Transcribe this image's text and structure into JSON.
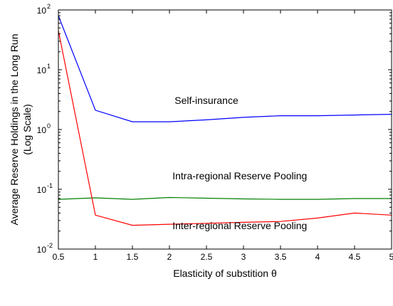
{
  "chart_data": {
    "type": "line",
    "title": "",
    "xlabel": "Elasticity of substition θ",
    "ylabel_line1": "Average Reserve Holdings in the Long Run",
    "ylabel_line2": "(Log Scale)",
    "xlim": [
      0.5,
      5
    ],
    "ylim": [
      0.01,
      100
    ],
    "y_scale": "log",
    "grid": false,
    "legend": "none",
    "x_ticks": [
      "0.5",
      "1",
      "1.5",
      "2",
      "2.5",
      "3",
      "3.5",
      "4",
      "4.5",
      "5"
    ],
    "y_ticks": [
      {
        "base": "10",
        "exp": "-2",
        "value": 0.01
      },
      {
        "base": "10",
        "exp": "-1",
        "value": 0.1
      },
      {
        "base": "10",
        "exp": "0",
        "value": 1
      },
      {
        "base": "10",
        "exp": "1",
        "value": 10
      },
      {
        "base": "10",
        "exp": "2",
        "value": 100
      }
    ],
    "x": [
      0.5,
      1,
      1.5,
      2,
      2.5,
      3,
      3.5,
      4,
      4.5,
      5
    ],
    "series": [
      {
        "name": "Self-insurance",
        "color": "#0000ff",
        "values": [
          80,
          2.1,
          1.35,
          1.35,
          1.45,
          1.6,
          1.7,
          1.7,
          1.75,
          1.8
        ]
      },
      {
        "name": "Intra-regional Reserve Pooling",
        "color": "#008000",
        "values": [
          0.068,
          0.072,
          0.068,
          0.073,
          0.071,
          0.069,
          0.068,
          0.068,
          0.07,
          0.07
        ]
      },
      {
        "name": "Inter-regional Reserve Pooling",
        "color": "#ff0000",
        "values": [
          45,
          0.037,
          0.025,
          0.026,
          0.027,
          0.028,
          0.029,
          0.033,
          0.04,
          0.037
        ]
      }
    ],
    "annotations": [
      {
        "text": "Self-insurance",
        "x": 2.5,
        "y": 2.7
      },
      {
        "text": "Intra-regional Reserve Pooling",
        "x": 2.95,
        "y": 0.146
      },
      {
        "text": "Inter-regional Reserve Pooling",
        "x": 2.95,
        "y": 0.0215
      }
    ]
  }
}
